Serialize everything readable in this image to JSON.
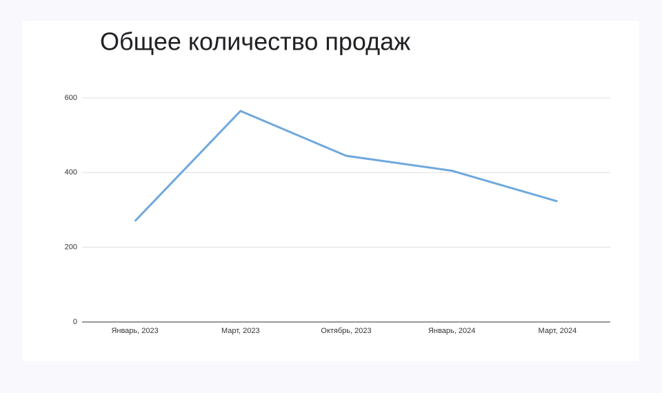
{
  "chart_data": {
    "type": "line",
    "title": "Общее количество продаж",
    "categories": [
      "Январь, 2023",
      "Март, 2023",
      "Октябрь, 2023",
      "Январь, 2024",
      "Март, 2024"
    ],
    "values": [
      270,
      565,
      445,
      405,
      323
    ],
    "color": "#6fa8dc",
    "ylim": [
      0,
      600
    ],
    "yticks": [
      0,
      200,
      400,
      600
    ],
    "grid": true
  }
}
